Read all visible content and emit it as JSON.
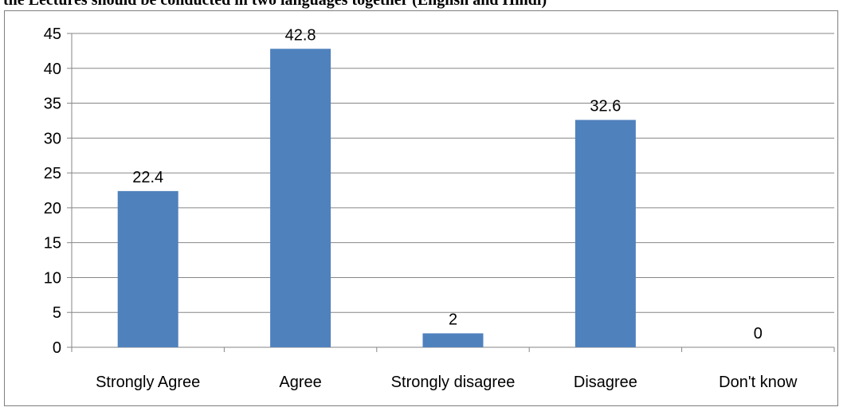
{
  "title": "the Lectures should be conducted in two languages together (English and Hindi)",
  "chart_data": {
    "type": "bar",
    "title": "the Lectures should be conducted in two languages together (English and Hindi)",
    "categories": [
      "Strongly Agree",
      "Agree",
      "Strongly disagree",
      "Disagree",
      "Don't know"
    ],
    "values": [
      22.4,
      42.8,
      2,
      32.6,
      0
    ],
    "data_labels": [
      "22.4",
      "42.8",
      "2",
      "32.6",
      "0"
    ],
    "y_ticks": [
      "0",
      "5",
      "10",
      "15",
      "20",
      "25",
      "30",
      "35",
      "40",
      "45"
    ],
    "ylim": [
      0,
      45
    ],
    "ystep": 5,
    "xlabel": "",
    "ylabel": "",
    "grid": true,
    "legend": "none",
    "bar_color": "#4F81BD",
    "grid_color": "#868686"
  }
}
